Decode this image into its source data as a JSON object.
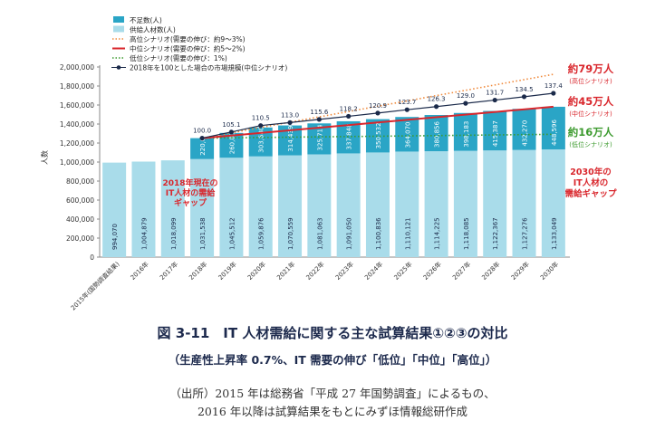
{
  "chart_data": {
    "type": "bar",
    "ylabel": "人数",
    "ylim": [
      0,
      2000000
    ],
    "yticks": [
      0,
      200000,
      400000,
      600000,
      800000,
      1000000,
      1200000,
      1400000,
      1600000,
      1800000,
      2000000
    ],
    "ytick_labels": [
      "0",
      "200,000",
      "400,000",
      "600,000",
      "800,000",
      "1,000,000",
      "1,200,000",
      "1,400,000",
      "1,600,000",
      "1,800,000",
      "2,000,000"
    ],
    "categories": [
      "2015年(国勢調査結果)",
      "2016年",
      "2017年",
      "2018年",
      "2019年",
      "2020年",
      "2021年",
      "2022年",
      "2023年",
      "2024年",
      "2025年",
      "2026年",
      "2027年",
      "2028年",
      "2029年",
      "2030年"
    ],
    "supply": [
      994070,
      1004879,
      1018099,
      1031538,
      1045512,
      1059876,
      1070559,
      1081063,
      1091050,
      1100836,
      1110121,
      1114225,
      1118085,
      1122367,
      1127276,
      1133049
    ],
    "supply_labels": [
      "994,070",
      "1,004,879",
      "1,018,099",
      "1,031,538",
      "1,045,512",
      "1,059,876",
      "1,070,559",
      "1,081,063",
      "1,091,050",
      "1,100,836",
      "1,110,121",
      "1,114,225",
      "1,118,085",
      "1,122,367",
      "1,127,276",
      "1,133,049"
    ],
    "shortage": [
      null,
      null,
      null,
      220000,
      260835,
      303680,
      314439,
      325714,
      337848,
      350532,
      364070,
      380856,
      398183,
      415387,
      432270,
      448596
    ],
    "shortage_labels": [
      "",
      "",
      "",
      "220,000",
      "260,835",
      "303,680",
      "314,439",
      "325,714",
      "337,848",
      "350,532",
      "364,070",
      "380,856",
      "398,183",
      "415,387",
      "432,270",
      "448,596"
    ],
    "index_values": [
      null,
      null,
      null,
      100.0,
      105.1,
      110.5,
      113.0,
      115.6,
      118.2,
      120.9,
      123.7,
      126.3,
      129.0,
      131.7,
      134.5,
      137.4
    ],
    "index_labels": [
      "",
      "",
      "",
      "100.0",
      "105.1",
      "110.5",
      "113.0",
      "115.6",
      "118.2",
      "120.9",
      "123.7",
      "126.3",
      "129.0",
      "131.7",
      "134.5",
      "137.4"
    ],
    "scenario_high": [
      null,
      null,
      null,
      1251538,
      null,
      null,
      null,
      null,
      null,
      null,
      null,
      null,
      null,
      null,
      null,
      1923000
    ],
    "scenario_mid": [
      null,
      null,
      null,
      1251538,
      null,
      null,
      null,
      null,
      null,
      null,
      null,
      null,
      null,
      null,
      null,
      1581645
    ],
    "scenario_low": [
      null,
      null,
      null,
      1251538,
      null,
      null,
      null,
      null,
      null,
      null,
      null,
      null,
      null,
      null,
      null,
      1292000
    ],
    "legend": [
      {
        "label": "不足数(人)",
        "kind": "bar",
        "color": "#2aa5c6"
      },
      {
        "label": "供給人材数(人)",
        "kind": "bar",
        "color": "#a9dcea"
      },
      {
        "label": "高位シナリオ(需要の伸び：約9～3%)",
        "kind": "dotted",
        "color": "#f08a3c"
      },
      {
        "label": "中位シナリオ(需要の伸び：約5～2%)",
        "kind": "solid",
        "color": "#d9262c"
      },
      {
        "label": "低位シナリオ(需要の伸び：1%)",
        "kind": "dotted",
        "color": "#3c9a2e"
      },
      {
        "label": "2018年を100とした場合の市場規模(中位シナリオ)",
        "kind": "marker-line",
        "color": "#1b2a4a"
      }
    ],
    "annotations": {
      "high_main": "約79万人",
      "high_sub": "(高位シナリオ)",
      "mid_main": "約45万人",
      "mid_sub": "(中位シナリオ)",
      "low_main": "約16万人",
      "low_sub": "(低位シナリオ)",
      "gap2030": [
        "2030年の",
        "IT人材の",
        "需給ギャップ"
      ],
      "gap2018": [
        "2018年現在の",
        "IT人材の需給",
        "ギャップ"
      ]
    },
    "colors": {
      "supply": "#a9dcea",
      "shortage": "#2aa5c6",
      "high": "#f08a3c",
      "mid": "#d9262c",
      "low": "#3c9a2e",
      "index": "#1b2a4a",
      "annot_red": "#d9262c",
      "annot_green": "#3c9a2e"
    }
  },
  "figure": {
    "title": "図 3-11　IT 人材需給に関する主な試算結果①②③の対比",
    "subtitle": "（生産性上昇率 0.7%、IT 需要の伸び「低位」「中位」「高位」）",
    "source_line1": "（出所）2015 年は総務省「平成 27 年国勢調査」によるもの、",
    "source_line2": "2016 年以降は試算結果をもとにみずほ情報総研作成"
  }
}
